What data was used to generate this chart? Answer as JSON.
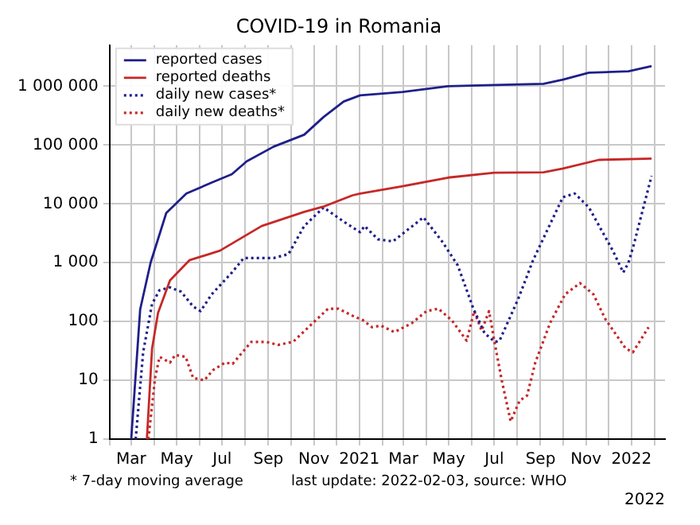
{
  "chart_data": {
    "type": "line",
    "title": "COVID-19 in Romania",
    "log": "y",
    "grid": true,
    "legend": "top left",
    "marker": "none",
    "xlim": [
      "2020-02-01",
      "2022-02-15"
    ],
    "xticks": [
      {
        "value": "2020-02-01",
        "label": null
      },
      {
        "value": "2020-03-01",
        "label": "Mar"
      },
      {
        "value": "2020-04-01",
        "label": null
      },
      {
        "value": "2020-05-01",
        "label": "May"
      },
      {
        "value": "2020-06-01",
        "label": null
      },
      {
        "value": "2020-07-01",
        "label": "Jul"
      },
      {
        "value": "2020-08-01",
        "label": null
      },
      {
        "value": "2020-09-01",
        "label": "Sep"
      },
      {
        "value": "2020-10-01",
        "label": null
      },
      {
        "value": "2020-11-01",
        "label": "Nov"
      },
      {
        "value": "2020-12-01",
        "label": null
      },
      {
        "value": "2021-01-01",
        "label": "2021"
      },
      {
        "value": "2021-02-01",
        "label": null
      },
      {
        "value": "2021-03-01",
        "label": "Mar"
      },
      {
        "value": "2021-04-01",
        "label": null
      },
      {
        "value": "2021-05-01",
        "label": "May"
      },
      {
        "value": "2021-06-01",
        "label": null
      },
      {
        "value": "2021-07-01",
        "label": "Jul"
      },
      {
        "value": "2021-08-01",
        "label": null
      },
      {
        "value": "2021-09-01",
        "label": "Sep"
      },
      {
        "value": "2021-10-01",
        "label": null
      },
      {
        "value": "2021-11-01",
        "label": "Nov"
      },
      {
        "value": "2021-12-01",
        "label": null
      },
      {
        "value": "2022-01-01",
        "label": "2022"
      },
      {
        "value": "2022-02-01",
        "label": null
      }
    ],
    "ylim": [
      1,
      5000000
    ],
    "yticks": [
      1,
      10,
      100,
      {
        "value": 1000,
        "label": "1 000"
      },
      {
        "value": 10000,
        "label": "10 000"
      },
      {
        "value": 100000,
        "label": "100 000"
      },
      {
        "value": 1000000,
        "label": "1 000 000"
      }
    ],
    "annotations": [
      "* 7-day moving average",
      "last update: 2022-02-03, source: WHO",
      "2022"
    ],
    "series": [
      {
        "name": "reported cases",
        "color": "#1f1f8a",
        "line_style": "solid",
        "x": [
          "2020-03-01",
          "2020-03-13",
          "2020-03-27",
          "2020-04-17",
          "2020-05-14",
          "2020-06-17",
          "2020-07-14",
          "2020-08-03",
          "2020-09-08",
          "2020-10-19",
          "2020-11-14",
          "2020-12-11",
          "2021-01-02",
          "2021-02-28",
          "2021-04-30",
          "2021-07-01",
          "2021-09-05",
          "2021-10-01",
          "2021-11-05",
          "2021-12-28",
          "2022-01-28"
        ],
        "values": [
          1,
          160,
          1000,
          7000,
          15000,
          23000,
          32000,
          53000,
          94000,
          150000,
          300000,
          550000,
          700000,
          800000,
          1000000,
          1050000,
          1100000,
          1300000,
          1700000,
          1800000,
          2200000
        ]
      },
      {
        "name": "reported deaths",
        "color": "#c62828",
        "line_style": "solid",
        "x": [
          "2020-03-22",
          "2020-03-29",
          "2020-04-06",
          "2020-04-22",
          "2020-05-18",
          "2020-06-28",
          "2020-08-23",
          "2020-10-19",
          "2020-11-14",
          "2020-12-23",
          "2021-01-02",
          "2021-02-28",
          "2021-04-30",
          "2021-07-01",
          "2021-09-05",
          "2021-10-01",
          "2021-11-18",
          "2022-01-28"
        ],
        "values": [
          1,
          35,
          140,
          500,
          1100,
          1600,
          4200,
          7300,
          9000,
          14000,
          15000,
          20000,
          28000,
          34000,
          34500,
          40000,
          56000,
          59000
        ]
      },
      {
        "name": "daily new cases*",
        "color": "#1f1f8a",
        "line_style": "dotted",
        "x": [
          "2020-03-07",
          "2020-03-17",
          "2020-03-29",
          "2020-04-08",
          "2020-04-22",
          "2020-05-07",
          "2020-05-23",
          "2020-06-02",
          "2020-06-17",
          "2020-07-14",
          "2020-07-30",
          "2020-09-08",
          "2020-09-28",
          "2020-10-19",
          "2020-11-14",
          "2020-12-11",
          "2021-01-02",
          "2021-01-08",
          "2021-01-26",
          "2021-02-15",
          "2021-03-28",
          "2021-04-22",
          "2021-05-13",
          "2021-06-03",
          "2021-06-18",
          "2021-07-02",
          "2021-07-08",
          "2021-08-02",
          "2021-08-22",
          "2021-10-01",
          "2021-10-17",
          "2021-11-05",
          "2021-12-07",
          "2021-12-21",
          "2021-12-28",
          "2022-01-04",
          "2022-01-28"
        ],
        "values": [
          1,
          30,
          200,
          340,
          380,
          320,
          180,
          150,
          290,
          680,
          1200,
          1200,
          1400,
          4200,
          8700,
          5000,
          3300,
          4200,
          2500,
          2300,
          5900,
          2300,
          900,
          165,
          63,
          45,
          47,
          240,
          1100,
          13000,
          15000,
          8700,
          1600,
          680,
          1000,
          2000,
          30000
        ]
      },
      {
        "name": "daily new deaths*",
        "color": "#c62828",
        "line_style": "dotted",
        "x": [
          "2020-03-24",
          "2020-04-02",
          "2020-04-08",
          "2020-04-22",
          "2020-04-29",
          "2020-05-13",
          "2020-05-23",
          "2020-06-07",
          "2020-06-19",
          "2020-07-05",
          "2020-07-15",
          "2020-08-09",
          "2020-08-29",
          "2020-09-14",
          "2020-10-04",
          "2020-10-31",
          "2020-11-20",
          "2020-12-04",
          "2020-12-23",
          "2021-01-06",
          "2021-01-18",
          "2021-01-30",
          "2021-02-17",
          "2021-03-12",
          "2021-04-01",
          "2021-04-17",
          "2021-05-05",
          "2021-05-25",
          "2021-06-04",
          "2021-06-14",
          "2021-06-24",
          "2021-07-01",
          "2021-07-11",
          "2021-07-23",
          "2021-08-04",
          "2021-08-14",
          "2021-08-25",
          "2021-09-14",
          "2021-10-04",
          "2021-10-24",
          "2021-11-11",
          "2021-11-27",
          "2021-12-24",
          "2022-01-03",
          "2022-01-24"
        ],
        "values": [
          1,
          11,
          25,
          20,
          27,
          25,
          11,
          10,
          15,
          20,
          19,
          45,
          45,
          40,
          45,
          95,
          165,
          165,
          125,
          105,
          80,
          85,
          66,
          93,
          150,
          165,
          105,
          47,
          150,
          70,
          150,
          47,
          10,
          2,
          4.5,
          5.5,
          20,
          95,
          290,
          450,
          290,
          110,
          35,
          30,
          80
        ]
      }
    ]
  }
}
